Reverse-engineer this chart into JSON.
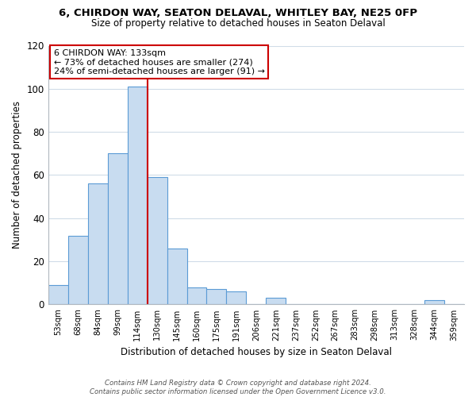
{
  "title1": "6, CHIRDON WAY, SEATON DELAVAL, WHITLEY BAY, NE25 0FP",
  "title2": "Size of property relative to detached houses in Seaton Delaval",
  "xlabel": "Distribution of detached houses by size in Seaton Delaval",
  "ylabel": "Number of detached properties",
  "bin_labels": [
    "53sqm",
    "68sqm",
    "84sqm",
    "99sqm",
    "114sqm",
    "130sqm",
    "145sqm",
    "160sqm",
    "175sqm",
    "191sqm",
    "206sqm",
    "221sqm",
    "237sqm",
    "252sqm",
    "267sqm",
    "283sqm",
    "298sqm",
    "313sqm",
    "328sqm",
    "344sqm",
    "359sqm"
  ],
  "bar_heights": [
    9,
    32,
    56,
    70,
    101,
    59,
    26,
    8,
    7,
    6,
    0,
    3,
    0,
    0,
    0,
    0,
    0,
    0,
    0,
    2,
    0
  ],
  "bar_color": "#c8dcf0",
  "bar_edge_color": "#5b9bd5",
  "vline_bar_index": 4,
  "vline_color": "#cc0000",
  "annotation_line1": "6 CHIRDON WAY: 133sqm",
  "annotation_line2": "← 73% of detached houses are smaller (274)",
  "annotation_line3": "24% of semi-detached houses are larger (91) →",
  "annotation_box_edge_color": "#cc0000",
  "ylim": [
    0,
    120
  ],
  "yticks": [
    0,
    20,
    40,
    60,
    80,
    100,
    120
  ],
  "footnote": "Contains HM Land Registry data © Crown copyright and database right 2024.\nContains public sector information licensed under the Open Government Licence v3.0.",
  "background_color": "#ffffff",
  "grid_color": "#d0dce8"
}
